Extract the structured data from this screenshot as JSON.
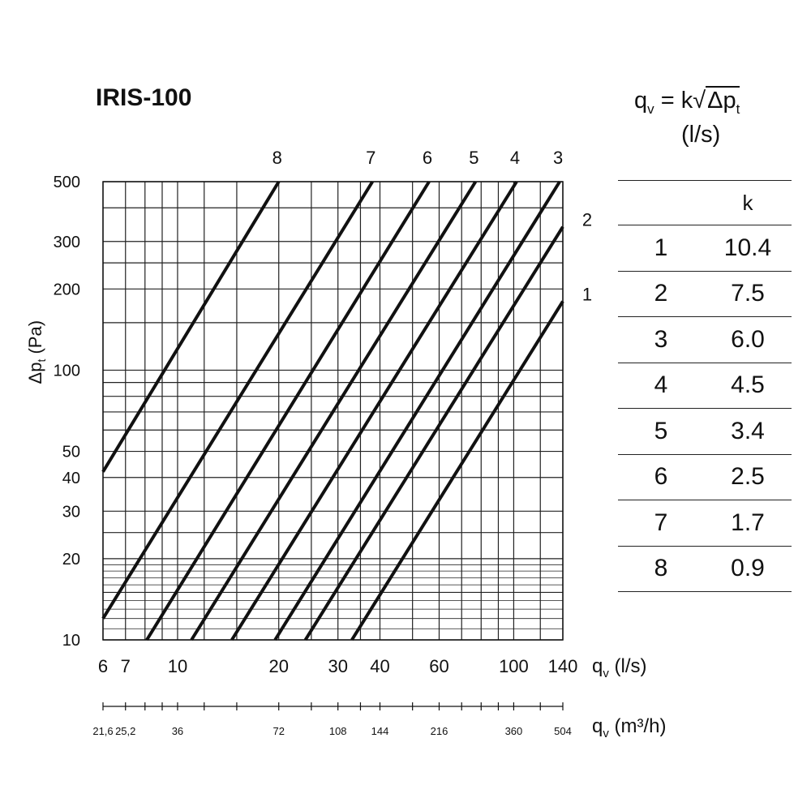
{
  "title": "IRIS-100",
  "formula": {
    "lhs": "q",
    "lhs_sub": "v",
    "eq": " = k",
    "rad_base": "Δp",
    "rad_sub": "t",
    "unit": "(l/s)"
  },
  "k_table": {
    "header": "k",
    "rows": [
      {
        "id": "1",
        "k": "10.4"
      },
      {
        "id": "2",
        "k": "7.5"
      },
      {
        "id": "3",
        "k": "6.0"
      },
      {
        "id": "4",
        "k": "4.5"
      },
      {
        "id": "5",
        "k": "3.4"
      },
      {
        "id": "6",
        "k": "2.5"
      },
      {
        "id": "7",
        "k": "1.7"
      },
      {
        "id": "8",
        "k": "0.9"
      }
    ]
  },
  "chart_data": {
    "type": "line",
    "title": "IRIS-100",
    "xscale": "log",
    "yscale": "log",
    "xlim": [
      6,
      140
    ],
    "ylim": [
      10,
      500
    ],
    "grid": true,
    "xlabel": {
      "base": "q",
      "sub": "v",
      "suffix": " (l/s)"
    },
    "xlabel2": {
      "base": "q",
      "sub": "v",
      "suffix": " (m³/h)"
    },
    "ylabel": {
      "base": "Δp",
      "sub": "t",
      "suffix": "  (Pa)"
    },
    "yticks": [
      10,
      20,
      30,
      40,
      50,
      100,
      200,
      300,
      500
    ],
    "ytick_labels": [
      "10",
      "20",
      "30",
      "40",
      "50",
      "100",
      "200",
      "300",
      "500"
    ],
    "yminor": [
      15,
      25,
      60,
      70,
      80,
      90,
      150,
      250,
      400
    ],
    "xticks": [
      6,
      7,
      10,
      20,
      30,
      40,
      60,
      100,
      140
    ],
    "xtick_labels": [
      "6",
      "7",
      "10",
      "20",
      "30",
      "40",
      "60",
      "100",
      "140"
    ],
    "xminor": [
      8,
      9,
      12,
      15,
      25,
      35,
      50,
      70,
      80,
      90,
      120
    ],
    "x2ticks": [
      6,
      7,
      10,
      20,
      30,
      40,
      60,
      100,
      140
    ],
    "x2tick_labels": [
      "21,6",
      "25,2",
      "36",
      "72",
      "108",
      "144",
      "216",
      "360",
      "504"
    ],
    "x2minor": [
      8,
      9,
      12,
      15,
      25,
      35,
      50,
      70,
      80,
      90,
      120
    ],
    "series": [
      {
        "name": "1",
        "k": 10.4,
        "x": [
          33,
          140
        ],
        "y": [
          10,
          180
        ]
      },
      {
        "name": "2",
        "k": 7.5,
        "x": [
          24,
          140
        ],
        "y": [
          10,
          340
        ]
      },
      {
        "name": "3",
        "k": 6.0,
        "x": [
          19.5,
          137
        ],
        "y": [
          10,
          500
        ]
      },
      {
        "name": "4",
        "k": 4.5,
        "x": [
          14.5,
          102
        ],
        "y": [
          10,
          500
        ]
      },
      {
        "name": "5",
        "k": 3.4,
        "x": [
          11,
          77
        ],
        "y": [
          10,
          500
        ]
      },
      {
        "name": "6",
        "k": 2.5,
        "x": [
          8.1,
          56
        ],
        "y": [
          10,
          500
        ]
      },
      {
        "name": "7",
        "k": 1.7,
        "x": [
          6,
          38
        ],
        "y": [
          12,
          500
        ]
      },
      {
        "name": "8",
        "k": 0.9,
        "x": [
          6,
          20
        ],
        "y": [
          42,
          500
        ]
      }
    ]
  }
}
